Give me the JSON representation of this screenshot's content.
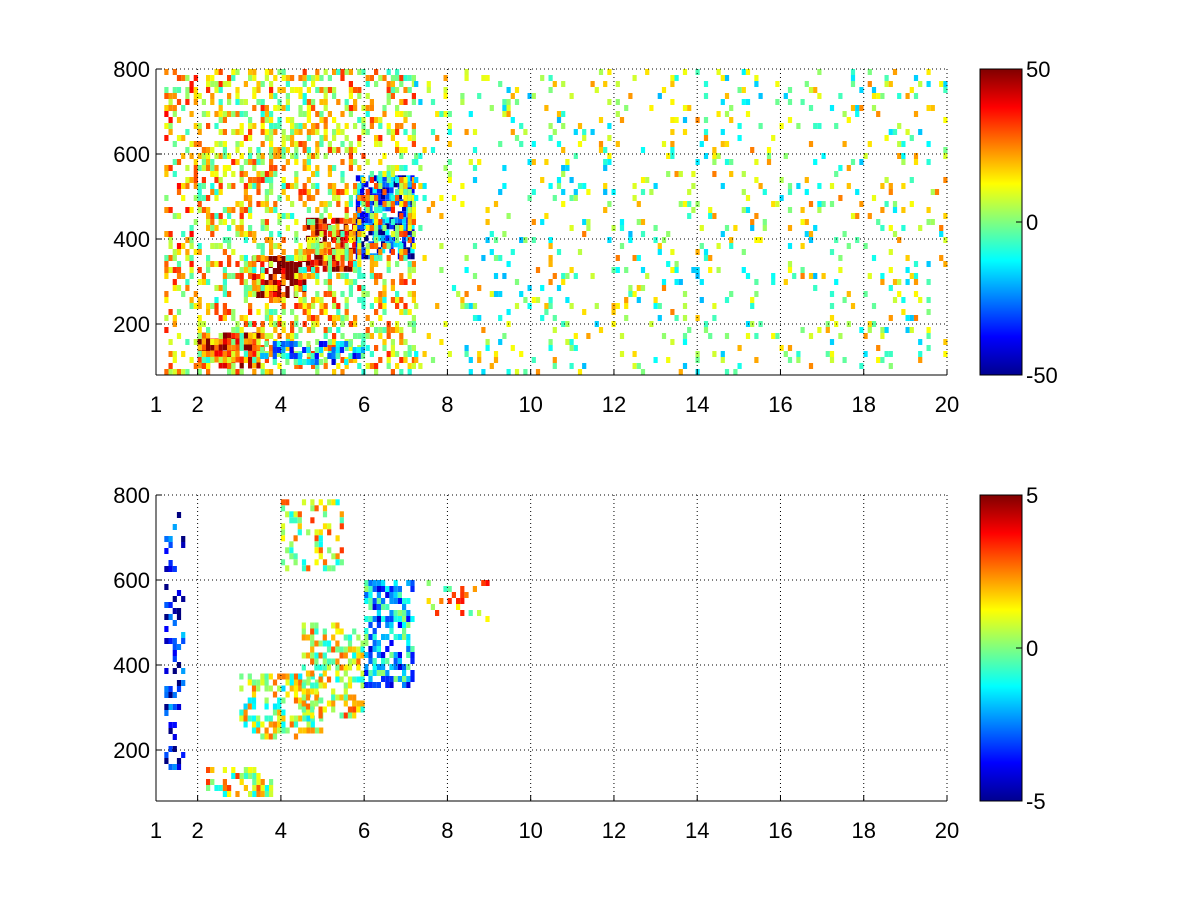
{
  "chart_data": [
    {
      "type": "heatmap",
      "title": "",
      "xlabel": "",
      "ylabel": "",
      "xlim": [
        1,
        20
      ],
      "ylim": [
        80,
        800
      ],
      "x_ticks": [
        1,
        2,
        4,
        6,
        8,
        10,
        12,
        14,
        16,
        18,
        20
      ],
      "y_ticks": [
        200,
        400,
        600,
        800
      ],
      "grid": true,
      "colormap": "jet",
      "color_range": [
        -50,
        50
      ],
      "colorbar": {
        "placement": "right",
        "ticks": [
          -50,
          0,
          50
        ]
      },
      "regions": [
        {
          "x": [
            1.2,
            2.0
          ],
          "y": [
            80,
            800
          ],
          "value": 15,
          "density": 0.35
        },
        {
          "x": [
            2.0,
            3.5
          ],
          "y": [
            90,
            180
          ],
          "value": 40,
          "density": 0.85
        },
        {
          "x": [
            3.3,
            4.6
          ],
          "y": [
            260,
            360
          ],
          "value": 45,
          "density": 0.85
        },
        {
          "x": [
            4.6,
            5.8
          ],
          "y": [
            320,
            450
          ],
          "value": 40,
          "density": 0.8
        },
        {
          "x": [
            5.8,
            7.2
          ],
          "y": [
            350,
            550
          ],
          "value": -35,
          "density": 0.8
        },
        {
          "x": [
            2.0,
            7.2
          ],
          "y": [
            80,
            800
          ],
          "value": 12,
          "density": 0.45
        },
        {
          "x": [
            3.5,
            6.0
          ],
          "y": [
            100,
            160
          ],
          "value": -20,
          "density": 0.5
        },
        {
          "x": [
            7.2,
            20.0
          ],
          "y": [
            80,
            800
          ],
          "value": 3,
          "density": 0.12
        }
      ]
    },
    {
      "type": "heatmap",
      "title": "",
      "xlabel": "",
      "ylabel": "",
      "xlim": [
        1,
        20
      ],
      "ylim": [
        80,
        800
      ],
      "x_ticks": [
        1,
        2,
        4,
        6,
        8,
        10,
        12,
        14,
        16,
        18,
        20
      ],
      "y_ticks": [
        200,
        400,
        600,
        800
      ],
      "grid": true,
      "colormap": "jet",
      "color_range": [
        -5,
        5
      ],
      "colorbar": {
        "placement": "right",
        "ticks": [
          -5,
          0,
          5
        ]
      },
      "regions": [
        {
          "x": [
            1.2,
            1.7
          ],
          "y": [
            150,
            760
          ],
          "value": -4,
          "density": 0.3
        },
        {
          "x": [
            2.2,
            3.8
          ],
          "y": [
            90,
            160
          ],
          "value": 1,
          "density": 0.6
        },
        {
          "x": [
            3.0,
            5.0
          ],
          "y": [
            220,
            380
          ],
          "value": 0.5,
          "density": 0.55
        },
        {
          "x": [
            4.5,
            6.0
          ],
          "y": [
            280,
            500
          ],
          "value": 1,
          "density": 0.55
        },
        {
          "x": [
            6.0,
            7.2
          ],
          "y": [
            350,
            600
          ],
          "value": -2,
          "density": 0.6
        },
        {
          "x": [
            4.0,
            5.5
          ],
          "y": [
            620,
            790
          ],
          "value": 1,
          "density": 0.35
        },
        {
          "x": [
            7.5,
            9.2
          ],
          "y": [
            500,
            600
          ],
          "value": 1.5,
          "density": 0.2
        }
      ]
    }
  ]
}
